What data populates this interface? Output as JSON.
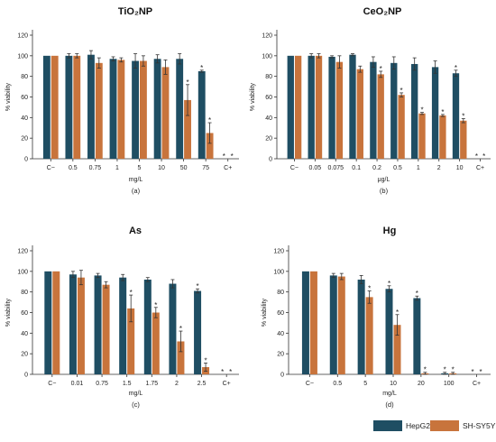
{
  "colors": {
    "hepg2": "#1f4e63",
    "shsy5y": "#c8743c",
    "axis": "#333333",
    "err": "#333333"
  },
  "legend": {
    "hepg2_label": "HepG2",
    "shsy5y_label": "SH-SY5Y"
  },
  "chart_data": [
    {
      "type": "bar",
      "title": "TiO₂NP",
      "panel_label": "(a)",
      "xlabel": "mg/L",
      "ylabel": "% viability",
      "ylim": [
        0,
        120
      ],
      "yticks": [
        0,
        20,
        40,
        60,
        80,
        100,
        120
      ],
      "categories": [
        "C−",
        "0.5",
        "0.75",
        "1",
        "5",
        "10",
        "50",
        "75",
        "C+"
      ],
      "series": [
        {
          "name": "HepG2",
          "values": [
            100,
            100,
            101,
            97,
            95,
            97,
            97,
            85,
            0
          ],
          "errors": [
            0,
            2,
            4,
            2,
            7,
            4,
            5,
            1,
            0
          ],
          "stars": [
            false,
            false,
            false,
            false,
            false,
            false,
            false,
            true,
            true
          ]
        },
        {
          "name": "SH-SY5Y",
          "values": [
            100,
            100,
            93,
            96,
            95,
            89,
            57,
            25,
            0
          ],
          "errors": [
            0,
            2,
            5,
            2,
            5,
            7,
            15,
            10,
            0
          ],
          "stars": [
            false,
            false,
            false,
            false,
            false,
            false,
            true,
            true,
            true
          ]
        }
      ]
    },
    {
      "type": "bar",
      "title": "CeO₂NP",
      "panel_label": "(b)",
      "xlabel": "μg/L",
      "ylabel": "% viability",
      "ylim": [
        0,
        120
      ],
      "yticks": [
        0,
        20,
        40,
        60,
        80,
        100,
        120
      ],
      "categories": [
        "C−",
        "0.05",
        "0.075",
        "0.1",
        "0.2",
        "0.5",
        "1",
        "2",
        "10",
        "C+"
      ],
      "series": [
        {
          "name": "HepG2",
          "values": [
            100,
            100,
            99,
            101,
            94,
            93,
            92,
            89,
            83,
            0
          ],
          "errors": [
            0,
            2,
            1,
            1,
            5,
            6,
            6,
            6,
            3,
            0
          ],
          "stars": [
            false,
            false,
            false,
            false,
            false,
            false,
            false,
            false,
            true,
            true
          ]
        },
        {
          "name": "SH-SY5Y",
          "values": [
            100,
            100,
            94,
            87,
            82,
            62,
            44,
            42,
            37,
            0
          ],
          "errors": [
            0,
            2,
            6,
            3,
            3,
            2,
            1,
            1,
            2,
            0
          ],
          "stars": [
            false,
            false,
            false,
            false,
            true,
            true,
            true,
            true,
            true,
            true
          ]
        }
      ]
    },
    {
      "type": "bar",
      "title": "As",
      "panel_label": "(c)",
      "xlabel": "mg/L",
      "ylabel": "% viability",
      "ylim": [
        0,
        120
      ],
      "yticks": [
        0,
        20,
        40,
        60,
        80,
        100,
        120
      ],
      "categories": [
        "C−",
        "0.01",
        "0.75",
        "1.5",
        "1.75",
        "2",
        "2.5",
        "C+"
      ],
      "series": [
        {
          "name": "HepG2",
          "values": [
            100,
            97,
            96,
            94,
            92,
            88,
            81,
            0
          ],
          "errors": [
            0,
            3,
            2,
            3,
            2,
            4,
            2,
            0
          ],
          "stars": [
            false,
            false,
            false,
            false,
            false,
            false,
            true,
            true
          ]
        },
        {
          "name": "SH-SY5Y",
          "values": [
            100,
            94,
            87,
            64,
            60,
            32,
            7,
            0
          ],
          "errors": [
            0,
            7,
            3,
            13,
            5,
            10,
            4,
            0
          ],
          "stars": [
            false,
            false,
            false,
            true,
            true,
            true,
            true,
            true
          ]
        }
      ]
    },
    {
      "type": "bar",
      "title": "Hg",
      "panel_label": "(d)",
      "xlabel": "mg/L",
      "ylabel": "% viability",
      "ylim": [
        0,
        120
      ],
      "yticks": [
        0,
        20,
        40,
        60,
        80,
        100,
        120
      ],
      "categories": [
        "C−",
        "0.5",
        "5",
        "10",
        "20",
        "100",
        "C+"
      ],
      "series": [
        {
          "name": "HepG2",
          "values": [
            100,
            96,
            92,
            83,
            74,
            1,
            0
          ],
          "errors": [
            0,
            2,
            4,
            3,
            2,
            1,
            0
          ],
          "stars": [
            false,
            false,
            false,
            true,
            true,
            true,
            true
          ]
        },
        {
          "name": "SH-SY5Y",
          "values": [
            100,
            95,
            75,
            48,
            1,
            1,
            0
          ],
          "errors": [
            0,
            3,
            6,
            10,
            1,
            1,
            0
          ],
          "stars": [
            false,
            false,
            true,
            true,
            true,
            true,
            true
          ]
        }
      ]
    }
  ]
}
